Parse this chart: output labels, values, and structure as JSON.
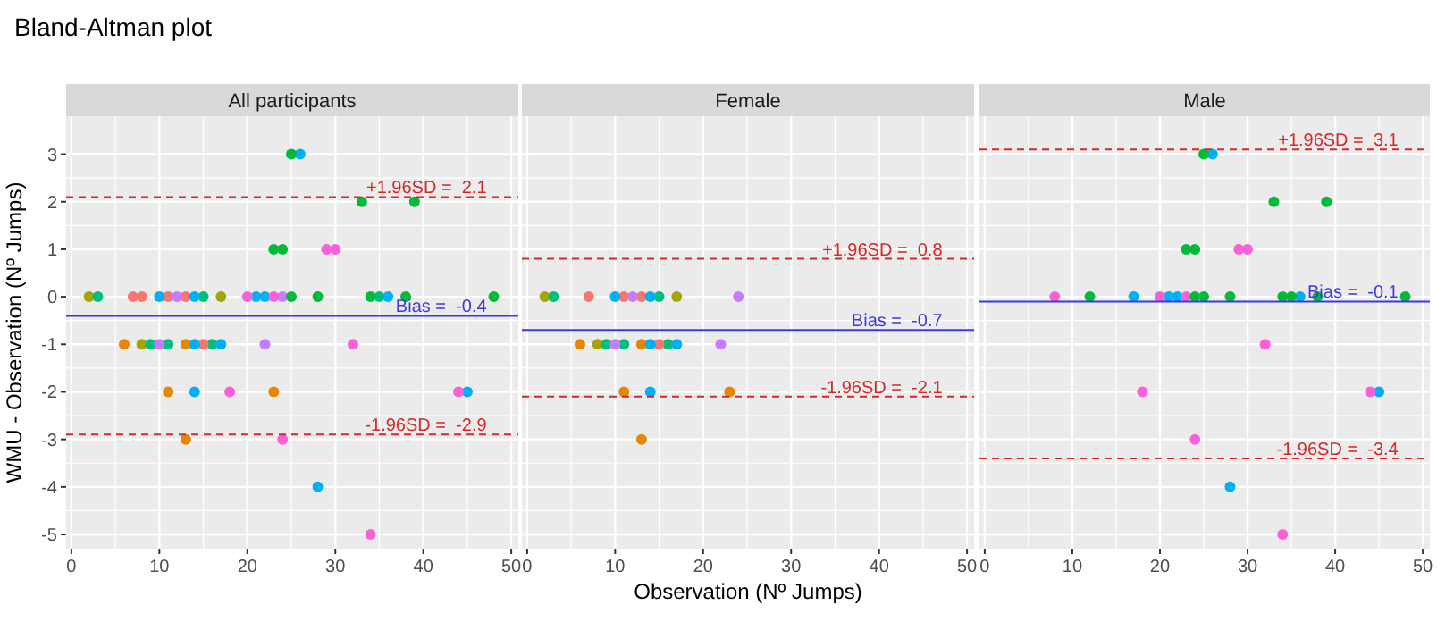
{
  "chart_data": [
    {
      "type": "scatter",
      "title": "Bland-Altman plot",
      "subtitle": "All participants",
      "xlabel": "Observation (Nº Jumps)",
      "ylabel": "WMU - Observation (Nº Jumps)",
      "xlim": [
        -0.6,
        50.8
      ],
      "ylim": [
        -5.3,
        3.8
      ],
      "xticks": [
        0,
        10,
        20,
        30,
        40,
        50
      ],
      "yticks": [
        -5,
        -4,
        -3,
        -2,
        -1,
        0,
        1,
        2,
        3
      ],
      "grid": true,
      "marker": "circle",
      "series": [
        {
          "color": "#a3a500",
          "x": [
            2,
            17,
            8
          ],
          "values": [
            0,
            0,
            -1
          ]
        },
        {
          "color": "#00bf7d",
          "x": [
            3,
            15,
            35,
            9,
            11,
            16
          ],
          "values": [
            0,
            0,
            0,
            -1,
            -1,
            -1
          ]
        },
        {
          "color": "#f8766d",
          "x": [
            7,
            8,
            11,
            13,
            15
          ],
          "values": [
            0,
            0,
            0,
            0,
            -1
          ]
        },
        {
          "color": "#e58700",
          "x": [
            6,
            13,
            11,
            23,
            13
          ],
          "values": [
            -1,
            -1,
            -2,
            -2,
            -3
          ]
        },
        {
          "color": "#00b0f6",
          "x": [
            26,
            10,
            14,
            21,
            22,
            36,
            14,
            17,
            14,
            45,
            28
          ],
          "values": [
            3,
            0,
            0,
            0,
            0,
            0,
            -1,
            -1,
            -2,
            -2,
            -4
          ]
        },
        {
          "color": "#c77cff",
          "x": [
            12,
            24,
            10,
            22
          ],
          "values": [
            0,
            0,
            -1,
            -1
          ]
        },
        {
          "color": "#fb61d7",
          "x": [
            29,
            30,
            20,
            23,
            32,
            18,
            44,
            24,
            34
          ],
          "values": [
            1,
            1,
            0,
            0,
            -1,
            -2,
            -2,
            -3,
            -5
          ]
        },
        {
          "color": "#00ba38",
          "x": [
            25,
            33,
            39,
            23,
            24,
            25,
            28,
            34,
            38,
            48
          ],
          "values": [
            3,
            2,
            2,
            1,
            1,
            0,
            0,
            0,
            0,
            0
          ]
        }
      ],
      "ref_lines": [
        {
          "axis": "y",
          "value": 2.1,
          "label": "+1.96SD =  2.1",
          "color": "#d62828",
          "line_style": "dashed"
        },
        {
          "axis": "y",
          "value": -0.4,
          "label": "Bias =  -0.4",
          "color": "#3b3bdd",
          "line_style": "solid"
        },
        {
          "axis": "y",
          "value": -2.9,
          "label": "-1.96SD =  -2.9",
          "color": "#d62828",
          "line_style": "dashed"
        }
      ]
    },
    {
      "type": "scatter",
      "subtitle": "Female",
      "xlim": [
        -0.6,
        50.8
      ],
      "ylim": [
        -5.3,
        3.8
      ],
      "xticks": [
        0,
        10,
        20,
        30,
        40,
        50
      ],
      "yticks": [
        -5,
        -4,
        -3,
        -2,
        -1,
        0,
        1,
        2,
        3
      ],
      "tick_labels": "x",
      "grid": true,
      "marker": "circle",
      "series": [
        {
          "color": "#a3a500",
          "x": [
            2,
            17,
            8
          ],
          "values": [
            0,
            0,
            -1
          ]
        },
        {
          "color": "#00bf7d",
          "x": [
            3,
            15,
            9,
            11,
            16
          ],
          "values": [
            0,
            0,
            -1,
            -1,
            -1
          ]
        },
        {
          "color": "#f8766d",
          "x": [
            7,
            11,
            13,
            15
          ],
          "values": [
            0,
            0,
            0,
            -1
          ]
        },
        {
          "color": "#e58700",
          "x": [
            6,
            13,
            11,
            23,
            13
          ],
          "values": [
            -1,
            -1,
            -2,
            -2,
            -3
          ]
        },
        {
          "color": "#00b0f6",
          "x": [
            10,
            14,
            14,
            17,
            14
          ],
          "values": [
            0,
            0,
            -1,
            -1,
            -2
          ]
        },
        {
          "color": "#c77cff",
          "x": [
            12,
            24,
            10,
            22
          ],
          "values": [
            0,
            0,
            -1,
            -1
          ]
        }
      ],
      "ref_lines": [
        {
          "axis": "y",
          "value": 0.8,
          "label": "+1.96SD =  0.8",
          "color": "#d62828",
          "line_style": "dashed"
        },
        {
          "axis": "y",
          "value": -0.7,
          "label": "Bias =  -0.7",
          "color": "#3b3bdd",
          "line_style": "solid"
        },
        {
          "axis": "y",
          "value": -2.1,
          "label": "-1.96SD =  -2.1",
          "color": "#d62828",
          "line_style": "dashed"
        }
      ]
    },
    {
      "type": "scatter",
      "subtitle": "Male",
      "xlim": [
        -0.6,
        50.8
      ],
      "ylim": [
        -5.3,
        3.8
      ],
      "xticks": [
        0,
        10,
        20,
        30,
        40,
        50
      ],
      "yticks": [
        -5,
        -4,
        -3,
        -2,
        -1,
        0,
        1,
        2,
        3
      ],
      "tick_labels": "x",
      "grid": true,
      "marker": "circle",
      "series": [
        {
          "color": "#00b0f6",
          "x": [
            26,
            17,
            21,
            22,
            36,
            45,
            28
          ],
          "values": [
            3,
            0,
            0,
            0,
            0,
            -2,
            -4
          ]
        },
        {
          "color": "#fb61d7",
          "x": [
            29,
            30,
            8,
            20,
            23,
            32,
            18,
            44,
            24,
            34
          ],
          "values": [
            1,
            1,
            0,
            0,
            0,
            -1,
            -2,
            -2,
            -3,
            -5
          ]
        },
        {
          "color": "#00ba38",
          "x": [
            25,
            33,
            39,
            23,
            24,
            12,
            24,
            25,
            28,
            34,
            35,
            38,
            48
          ],
          "values": [
            3,
            2,
            2,
            1,
            1,
            0,
            0,
            0,
            0,
            0,
            0,
            0,
            0
          ]
        }
      ],
      "ref_lines": [
        {
          "axis": "y",
          "value": 3.1,
          "label": "+1.96SD =  3.1",
          "color": "#d62828",
          "line_style": "dashed"
        },
        {
          "axis": "y",
          "value": -0.1,
          "label": "Bias =  -0.1",
          "color": "#3b3bdd",
          "line_style": "solid"
        },
        {
          "axis": "y",
          "value": -3.4,
          "label": "-1.96SD =  -3.4",
          "color": "#d62828",
          "line_style": "dashed"
        }
      ]
    }
  ]
}
